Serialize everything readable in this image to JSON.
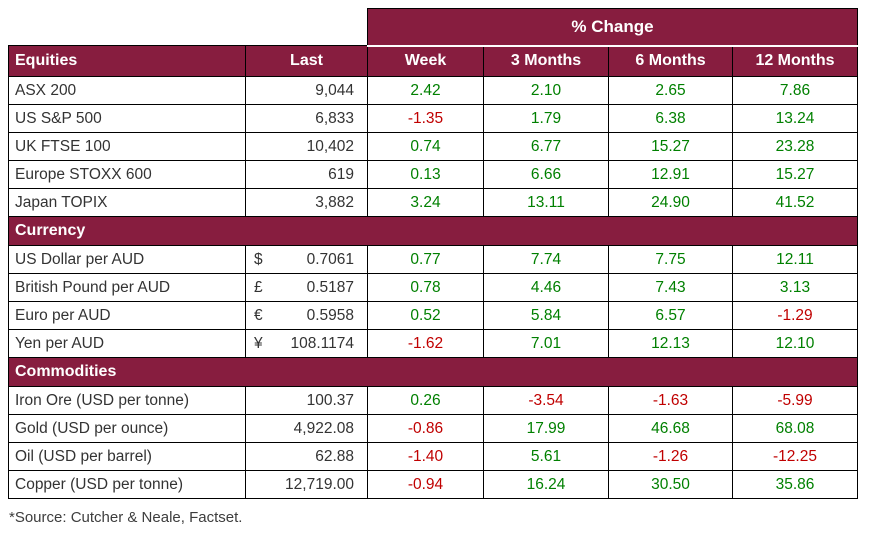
{
  "chart_data": {
    "type": "table",
    "title": "% Change",
    "last_label": "Last",
    "period_columns": [
      "Week",
      "3 Months",
      "6 Months",
      "12 Months"
    ],
    "sections": [
      {
        "label": "Equities",
        "rows": [
          {
            "name": "ASX 200",
            "symbol": "",
            "last": "9,044",
            "changes": [
              "2.42",
              "2.10",
              "2.65",
              "7.86"
            ]
          },
          {
            "name": "US S&P 500",
            "symbol": "",
            "last": "6,833",
            "changes": [
              "-1.35",
              "1.79",
              "6.38",
              "13.24"
            ]
          },
          {
            "name": "UK FTSE 100",
            "symbol": "",
            "last": "10,402",
            "changes": [
              "0.74",
              "6.77",
              "15.27",
              "23.28"
            ]
          },
          {
            "name": "Europe STOXX 600",
            "symbol": "",
            "last": "619",
            "changes": [
              "0.13",
              "6.66",
              "12.91",
              "15.27"
            ]
          },
          {
            "name": "Japan TOPIX",
            "symbol": "",
            "last": "3,882",
            "changes": [
              "3.24",
              "13.11",
              "24.90",
              "41.52"
            ]
          }
        ]
      },
      {
        "label": "Currency",
        "rows": [
          {
            "name": "US Dollar per AUD",
            "symbol": "$",
            "last": "0.7061",
            "changes": [
              "0.77",
              "7.74",
              "7.75",
              "12.11"
            ]
          },
          {
            "name": "British Pound per AUD",
            "symbol": "£",
            "last": "0.5187",
            "changes": [
              "0.78",
              "4.46",
              "7.43",
              "3.13"
            ]
          },
          {
            "name": "Euro per AUD",
            "symbol": "€",
            "last": "0.5958",
            "changes": [
              "0.52",
              "5.84",
              "6.57",
              "-1.29"
            ]
          },
          {
            "name": "Yen per AUD",
            "symbol": "¥",
            "last": "108.1174",
            "changes": [
              "-1.62",
              "7.01",
              "12.13",
              "12.10"
            ]
          }
        ]
      },
      {
        "label": "Commodities",
        "rows": [
          {
            "name": "Iron Ore (USD per tonne)",
            "symbol": "",
            "last": "100.37",
            "changes": [
              "0.26",
              "-3.54",
              "-1.63",
              "-5.99"
            ]
          },
          {
            "name": "Gold (USD per ounce)",
            "symbol": "",
            "last": "4,922.08",
            "changes": [
              "-0.86",
              "17.99",
              "46.68",
              "68.08"
            ]
          },
          {
            "name": "Oil (USD per barrel)",
            "symbol": "",
            "last": "62.88",
            "changes": [
              "-1.40",
              "5.61",
              "-1.26",
              "-12.25"
            ]
          },
          {
            "name": "Copper (USD per tonne)",
            "symbol": "",
            "last": "12,719.00",
            "changes": [
              "-0.94",
              "16.24",
              "30.50",
              "35.86"
            ]
          }
        ]
      }
    ],
    "footnote": "*Source: Cutcher & Neale, Factset."
  },
  "colors": {
    "header_maroon": "#871D3F",
    "positive_green": "#008000",
    "negative_red": "#C00000"
  }
}
